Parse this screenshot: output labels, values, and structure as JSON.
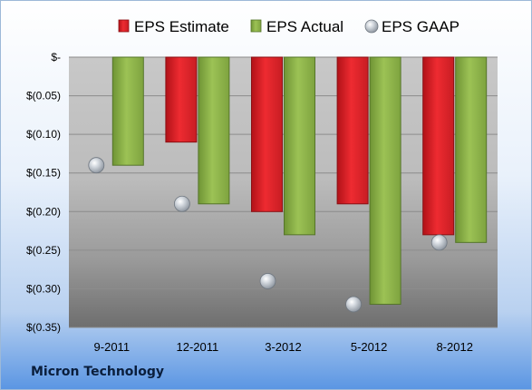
{
  "company": "Micron Technology",
  "colors": {
    "estimate": "#d9262c",
    "actual": "#8cb34a",
    "gaap": "#b9c0c8"
  },
  "chart_data": {
    "type": "bar",
    "categories": [
      "9-2011",
      "12-2011",
      "3-2012",
      "5-2012",
      "8-2012"
    ],
    "series": [
      {
        "name": "EPS Estimate",
        "type": "bar",
        "values": [
          null,
          -0.11,
          -0.2,
          -0.19,
          -0.23
        ]
      },
      {
        "name": "EPS Actual",
        "type": "bar",
        "values": [
          -0.14,
          -0.19,
          -0.23,
          -0.32,
          -0.24
        ]
      },
      {
        "name": "EPS GAAP",
        "type": "scatter",
        "values": [
          -0.14,
          -0.19,
          -0.29,
          -0.32,
          -0.24
        ]
      }
    ],
    "ylim": [
      -0.35,
      0
    ],
    "yticks": [
      0,
      -0.05,
      -0.1,
      -0.15,
      -0.2,
      -0.25,
      -0.3,
      -0.35
    ],
    "ytick_labels": [
      "$-",
      "$(0.05)",
      "$(0.10)",
      "$(0.15)",
      "$(0.20)",
      "$(0.25)",
      "$(0.30)",
      "$(0.35)"
    ],
    "legend": "top",
    "grid": true
  }
}
